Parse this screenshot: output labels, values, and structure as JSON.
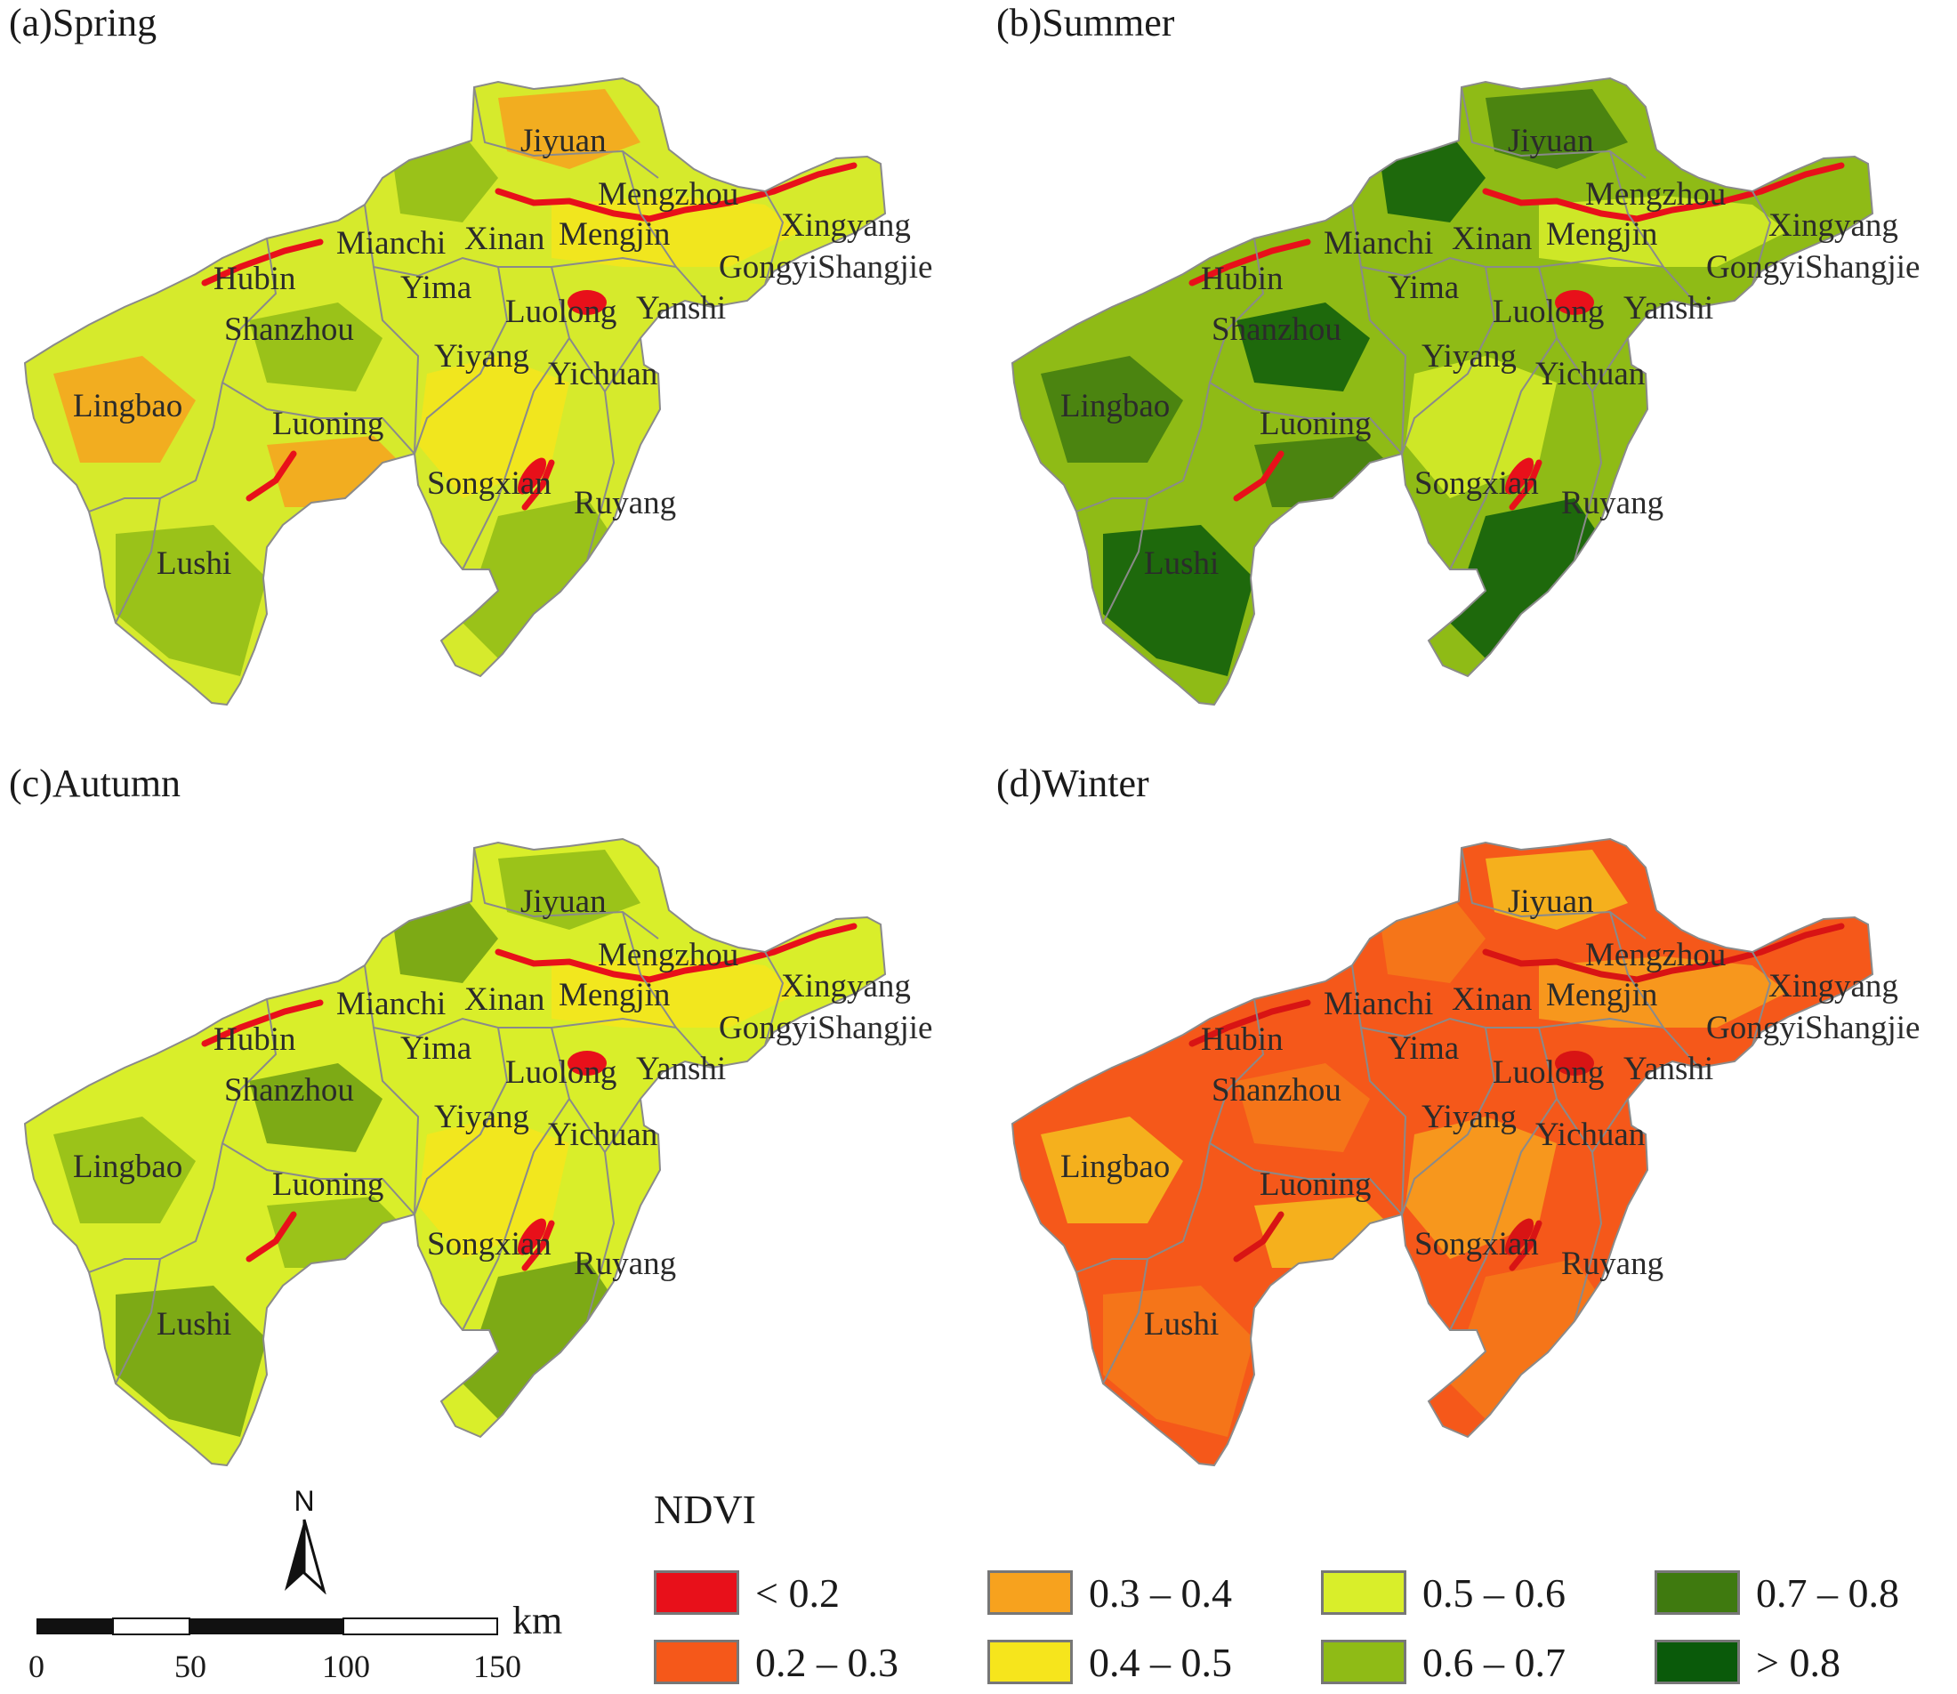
{
  "panels": [
    {
      "id": "a",
      "title": "(a)Spring",
      "season": "spring"
    },
    {
      "id": "b",
      "title": "(b)Summer",
      "season": "summer"
    },
    {
      "id": "c",
      "title": "(c)Autumn",
      "season": "autumn"
    },
    {
      "id": "d",
      "title": "(d)Winter",
      "season": "winter"
    }
  ],
  "places": [
    "Jiyuan",
    "Mengzhou",
    "Xingyang",
    "Mianchi",
    "Xinan",
    "Mengjin",
    "GongyiShangjie",
    "Hubin",
    "Yima",
    "Luolong",
    "Yanshi",
    "Shanzhou",
    "Yiyang",
    "Yichuan",
    "Lingbao",
    "Luoning",
    "Songxian",
    "Ruyang",
    "Lushi"
  ],
  "legend": {
    "title": "NDVI",
    "classes": [
      {
        "label": "< 0.2",
        "color": "#e8101a"
      },
      {
        "label": "0.2 – 0.3",
        "color": "#f5581a"
      },
      {
        "label": "0.3 – 0.4",
        "color": "#f7a21e"
      },
      {
        "label": "0.4 – 0.5",
        "color": "#f6e51c"
      },
      {
        "label": "0.5 – 0.6",
        "color": "#d9ee2a"
      },
      {
        "label": "0.6 – 0.7",
        "color": "#8fbb16"
      },
      {
        "label": "0.7 – 0.8",
        "color": "#3f7a0f"
      },
      {
        "label": "> 0.8",
        "color": "#0a5a0a"
      }
    ]
  },
  "scale": {
    "unit": "km",
    "ticks": [
      "0",
      "50",
      "100",
      "150"
    ]
  },
  "north": "N",
  "palettes": {
    "spring": {
      "base": "#d6ea2c",
      "mid": "#f6e51c",
      "hi": "#8fbb16",
      "lo": "#f7a21e",
      "dark": "#e8101a"
    },
    "summer": {
      "base": "#8fbb16",
      "mid": "#d9ee2a",
      "hi": "#0a5a0a",
      "lo": "#3f7a0f",
      "dark": "#e8101a"
    },
    "autumn": {
      "base": "#d9ee2a",
      "mid": "#f6e51c",
      "hi": "#6c9e12",
      "lo": "#8fbb16",
      "dark": "#e8101a"
    },
    "winter": {
      "base": "#f5581a",
      "mid": "#f7a21e",
      "hi": "#f57a1a",
      "lo": "#f5c01e",
      "dark": "#d81414"
    }
  }
}
